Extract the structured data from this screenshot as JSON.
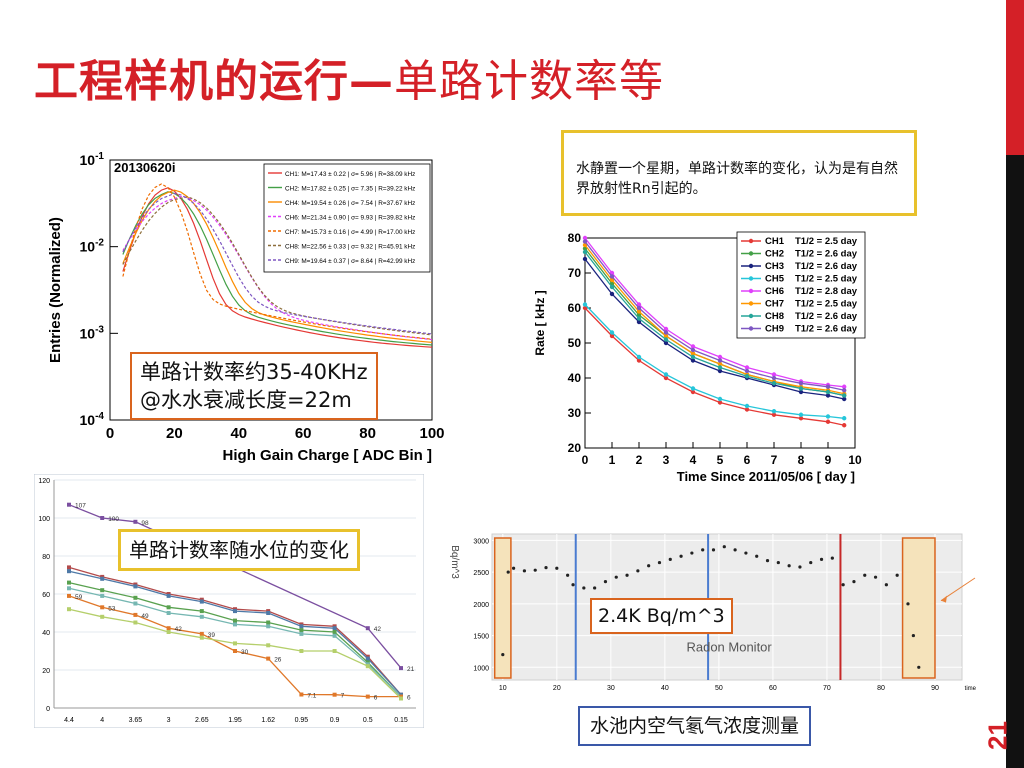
{
  "slide": {
    "title_bold": "工程样机的运行—",
    "title_rest": "单路计数率等",
    "page_number": "21"
  },
  "callouts": {
    "rate_note": "单路计数率约35-40KHz\n@水水衰减长度=22m",
    "water_note": "水静置一个星期，单路计数率的变化，认为是有自然界放射性Rn引起的。",
    "level_note": "单路计数率随水位的变化",
    "radon_value": "2.4K Bq/m^3",
    "radon_caption": "水池内空气氡气浓度测量"
  },
  "chart_data": [
    {
      "type": "line",
      "title": "20130620i",
      "xlabel": "High Gain Charge [ ADC Bin ]",
      "ylabel": "Entries (Normalized)",
      "xlim": [
        0,
        100
      ],
      "ylim": [
        0.0001,
        0.1
      ],
      "yscale": "log",
      "x_ticks": [
        "0",
        "20",
        "40",
        "60",
        "80",
        "100"
      ],
      "y_ticks": [
        "10-4",
        "10-3",
        "10-2",
        "10-1"
      ],
      "legend_position": "top-right",
      "legend": [
        {
          "name": "CH1: M=17.43 ± 0.22 | σ= 5.96 | R=38.09 kHz",
          "color": "#e53935"
        },
        {
          "name": "CH2: M=17.82 ± 0.25 | σ= 7.35 | R=39.22 kHz",
          "color": "#43a047"
        },
        {
          "name": "CH4: M=19.54 ± 0.26 | σ= 7.54 | R=37.67 kHz",
          "color": "#fb8c00"
        },
        {
          "name": "CH6: M=21.34 ± 0.90 | σ= 9.93 | R=39.82 kHz",
          "color": "#e040fb"
        },
        {
          "name": "CH7: M=15.73 ± 0.16 | σ= 4.99 | R=17.00 kHz",
          "color": "#ef6c00"
        },
        {
          "name": "CH8: M=22.56 ± 0.33 | σ= 9.32 | R=45.91 kHz",
          "color": "#8d6e3b"
        },
        {
          "name": "CH9: M=19.64 ± 0.37 | σ= 8.64 | R=42.99 kHz",
          "color": "#7e57c2"
        }
      ]
    },
    {
      "type": "scatter",
      "xlabel": "Time Since 2011/05/06 [ day ]",
      "ylabel": "Rate [ kHz ]",
      "xlim": [
        0,
        10
      ],
      "ylim": [
        20,
        80
      ],
      "x_ticks": [
        "0",
        "1",
        "2",
        "3",
        "4",
        "5",
        "6",
        "7",
        "8",
        "9",
        "10"
      ],
      "y_ticks": [
        "20",
        "30",
        "40",
        "50",
        "60",
        "70",
        "80"
      ],
      "legend_position": "top-right",
      "series": [
        {
          "name": "CH1",
          "half_life": "T1/2 = 2.5 day",
          "color": "#e53935",
          "values": [
            [
              0,
              60
            ],
            [
              1,
              52
            ],
            [
              2,
              45
            ],
            [
              3,
              40
            ],
            [
              4,
              36
            ],
            [
              5,
              33
            ],
            [
              6,
              31
            ],
            [
              7,
              29.5
            ],
            [
              8,
              28.5
            ],
            [
              9,
              27.5
            ],
            [
              9.6,
              26.5
            ]
          ]
        },
        {
          "name": "CH2",
          "half_life": "T1/2 = 2.6 day",
          "color": "#43a047",
          "values": [
            [
              0,
              77
            ],
            [
              1,
              67
            ],
            [
              2,
              58
            ],
            [
              3,
              52
            ],
            [
              4,
              47
            ],
            [
              5,
              44
            ],
            [
              6,
              41
            ],
            [
              7,
              39
            ],
            [
              8,
              37
            ],
            [
              9,
              36
            ],
            [
              9.6,
              35
            ]
          ]
        },
        {
          "name": "CH3",
          "half_life": "T1/2 = 2.6 day",
          "color": "#1a237e",
          "values": [
            [
              0,
              74
            ],
            [
              1,
              64
            ],
            [
              2,
              56
            ],
            [
              3,
              50
            ],
            [
              4,
              45
            ],
            [
              5,
              42
            ],
            [
              6,
              40
            ],
            [
              7,
              38
            ],
            [
              8,
              36
            ],
            [
              9,
              35
            ],
            [
              9.6,
              34
            ]
          ]
        },
        {
          "name": "CH5",
          "half_life": "T1/2 = 2.5 day",
          "color": "#26c6da",
          "values": [
            [
              0,
              61
            ],
            [
              1,
              53
            ],
            [
              2,
              46
            ],
            [
              3,
              41
            ],
            [
              4,
              37
            ],
            [
              5,
              34
            ],
            [
              6,
              32
            ],
            [
              7,
              30.5
            ],
            [
              8,
              29.5
            ],
            [
              9,
              29
            ],
            [
              9.6,
              28.5
            ]
          ]
        },
        {
          "name": "CH6",
          "half_life": "T1/2 = 2.8 day",
          "color": "#e040fb",
          "values": [
            [
              0,
              80
            ],
            [
              1,
              70
            ],
            [
              2,
              61
            ],
            [
              3,
              54
            ],
            [
              4,
              49
            ],
            [
              5,
              46
            ],
            [
              6,
              43
            ],
            [
              7,
              41
            ],
            [
              8,
              39
            ],
            [
              9,
              38
            ],
            [
              9.6,
              37.5
            ]
          ]
        },
        {
          "name": "CH7",
          "half_life": "T1/2 = 2.5 day",
          "color": "#ff9800",
          "values": [
            [
              0,
              78
            ],
            [
              1,
              68
            ],
            [
              2,
              59
            ],
            [
              3,
              52
            ],
            [
              4,
              47
            ],
            [
              5,
              44
            ],
            [
              6,
              41
            ],
            [
              7,
              39
            ],
            [
              8,
              37.5
            ],
            [
              9,
              36.5
            ],
            [
              9.6,
              35.5
            ]
          ]
        },
        {
          "name": "CH8",
          "half_life": "T1/2 = 2.6 day",
          "color": "#26a69a",
          "values": [
            [
              0,
              76
            ],
            [
              1,
              66
            ],
            [
              2,
              57
            ],
            [
              3,
              51
            ],
            [
              4,
              46
            ],
            [
              5,
              43
            ],
            [
              6,
              40.5
            ],
            [
              7,
              38.5
            ],
            [
              8,
              37
            ],
            [
              9,
              36
            ],
            [
              9.6,
              35
            ]
          ]
        },
        {
          "name": "CH9",
          "half_life": "T1/2 = 2.6 day",
          "color": "#7e57c2",
          "values": [
            [
              0,
              79
            ],
            [
              1,
              69
            ],
            [
              2,
              60
            ],
            [
              3,
              53
            ],
            [
              4,
              48
            ],
            [
              5,
              45
            ],
            [
              6,
              42
            ],
            [
              7,
              40
            ],
            [
              8,
              38.5
            ],
            [
              9,
              37.5
            ],
            [
              9.6,
              36.5
            ]
          ]
        }
      ]
    },
    {
      "type": "line",
      "categories": [
        "4.4",
        "4",
        "3.65",
        "3",
        "2.65",
        "1.95",
        "1.62",
        "0.95",
        "0.9",
        "0.5",
        "0.15"
      ],
      "ylim": [
        0,
        120
      ],
      "y_ticks": [
        "0",
        "20",
        "40",
        "60",
        "80",
        "100",
        "120"
      ],
      "series": [
        {
          "color": "#7b4fa0",
          "values": [
            107,
            100,
            98,
            null,
            null,
            null,
            null,
            null,
            null,
            42,
            21
          ],
          "labels": [
            "107",
            "100",
            "98",
            "",
            "",
            "",
            "",
            "",
            "",
            "42",
            "21"
          ]
        },
        {
          "color": "#b34b4b",
          "values": [
            74,
            69,
            65,
            60,
            57,
            52,
            51,
            44,
            43,
            27,
            7
          ]
        },
        {
          "color": "#4e79a7",
          "values": [
            72,
            68,
            64,
            59,
            56,
            51,
            50,
            43,
            42,
            26,
            7
          ]
        },
        {
          "color": "#59a14f",
          "values": [
            66,
            62,
            58,
            53,
            51,
            46,
            45,
            41,
            40,
            24,
            6
          ]
        },
        {
          "color": "#76b7b2",
          "values": [
            63,
            59,
            55,
            50,
            48,
            44,
            43,
            39,
            38,
            23,
            6
          ]
        },
        {
          "color": "#e0782a",
          "values": [
            59,
            53,
            49,
            42,
            39,
            30,
            26,
            7.1,
            7,
            6,
            6
          ],
          "labels": [
            "59",
            "53",
            "49",
            "42",
            "39",
            "30",
            "26",
            "7.1",
            "7",
            "6",
            "6"
          ]
        },
        {
          "color": "#b5cf6b",
          "values": [
            52,
            48,
            45,
            40,
            37,
            34,
            33,
            30,
            30,
            22,
            5
          ]
        }
      ]
    },
    {
      "type": "scatter",
      "xlim": [
        8,
        95
      ],
      "ylim": [
        800,
        3100
      ],
      "x_ticks": [
        "10",
        "20",
        "30",
        "40",
        "50",
        "60",
        "70",
        "80",
        "90"
      ],
      "y_ticks": [
        "1000",
        "1500",
        "2000",
        "2500",
        "3000"
      ],
      "xlabel": "time",
      "ylabel": "Bq/m^3",
      "annotation": "Radon Monitor",
      "vertical_markers": [
        {
          "x": 23.5,
          "color": "#4a7bd0"
        },
        {
          "x": 48,
          "color": "#4a7bd0"
        },
        {
          "x": 72.5,
          "color": "#c62828"
        }
      ],
      "highlight_ranges": [
        [
          8.5,
          11.5
        ],
        [
          84,
          90
        ]
      ],
      "series": [
        {
          "name": "radon",
          "values": [
            [
              10,
              1200
            ],
            [
              11,
              2500
            ],
            [
              12,
              2560
            ],
            [
              14,
              2520
            ],
            [
              16,
              2530
            ],
            [
              18,
              2570
            ],
            [
              20,
              2560
            ],
            [
              22,
              2450
            ],
            [
              23,
              2300
            ],
            [
              25,
              2250
            ],
            [
              27,
              2250
            ],
            [
              29,
              2350
            ],
            [
              31,
              2420
            ],
            [
              33,
              2450
            ],
            [
              35,
              2520
            ],
            [
              37,
              2600
            ],
            [
              39,
              2650
            ],
            [
              41,
              2700
            ],
            [
              43,
              2750
            ],
            [
              45,
              2800
            ],
            [
              47,
              2850
            ],
            [
              49,
              2850
            ],
            [
              51,
              2900
            ],
            [
              53,
              2850
            ],
            [
              55,
              2800
            ],
            [
              57,
              2750
            ],
            [
              59,
              2680
            ],
            [
              61,
              2650
            ],
            [
              63,
              2600
            ],
            [
              65,
              2580
            ],
            [
              67,
              2650
            ],
            [
              69,
              2700
            ],
            [
              71,
              2720
            ],
            [
              73,
              2300
            ],
            [
              75,
              2350
            ],
            [
              77,
              2450
            ],
            [
              79,
              2420
            ],
            [
              81,
              2300
            ],
            [
              83,
              2450
            ],
            [
              85,
              2000
            ],
            [
              86,
              1500
            ],
            [
              87,
              1000
            ]
          ]
        }
      ]
    }
  ]
}
